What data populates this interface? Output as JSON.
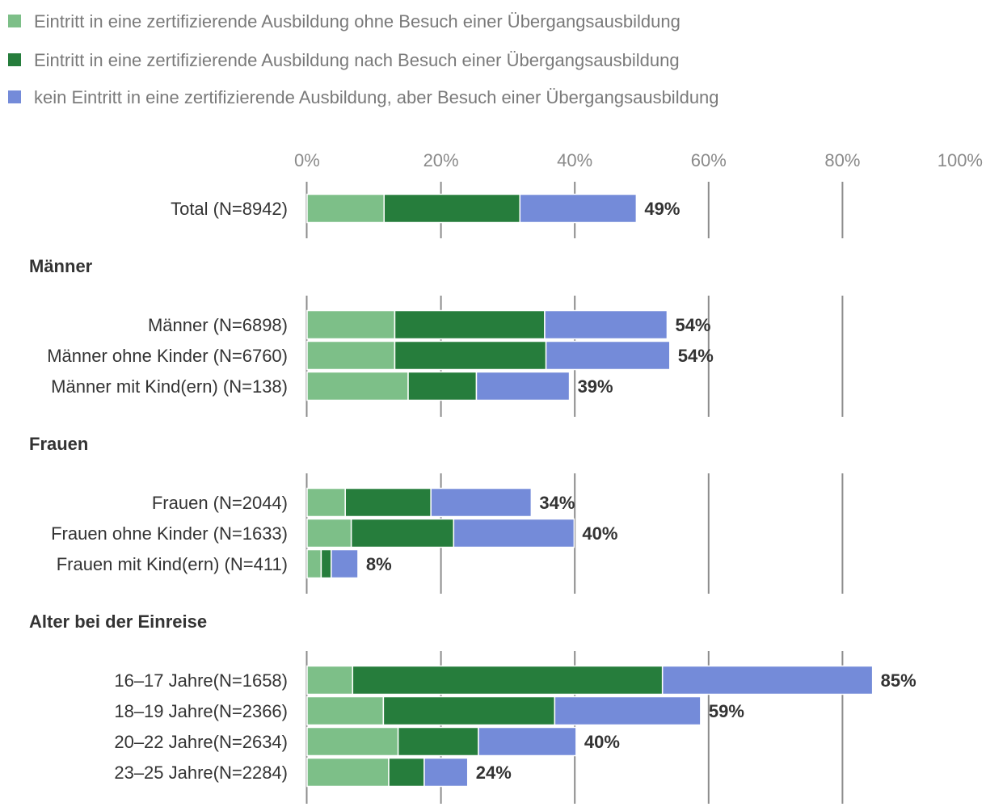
{
  "chart_data": {
    "type": "bar",
    "orientation": "horizontal",
    "stacked": true,
    "xlim": [
      0,
      100
    ],
    "ticks": [
      "0%",
      "20%",
      "40%",
      "60%",
      "80%",
      "100%"
    ],
    "legend_position": "top-left",
    "series": [
      {
        "name": "Eintritt in eine zertifizierende Ausbildung ohne Besuch einer Übergangsausbildung",
        "color": "#7dbf88"
      },
      {
        "name": "Eintritt in eine zertifizierende Ausbildung nach Besuch einer Übergangsausbildung",
        "color": "#267d3c"
      },
      {
        "name": "kein Eintritt in eine zertifizierende Ausbildung, aber Besuch einer Übergangsausbildung",
        "color": "#748bd9"
      }
    ],
    "groups": [
      {
        "title": "",
        "rows": [
          {
            "label": "Total (N=8942)",
            "values": [
              11.5,
              20.3,
              17.4
            ],
            "total_label": "49%"
          }
        ]
      },
      {
        "title": "Männer",
        "rows": [
          {
            "label": "Männer (N=6898)",
            "values": [
              13.1,
              22.4,
              18.3
            ],
            "total_label": "54%"
          },
          {
            "label": "Männer ohne Kinder (N=6760)",
            "values": [
              13.1,
              22.6,
              18.5
            ],
            "total_label": "54%"
          },
          {
            "label": "Männer mit Kind(ern) (N=138)",
            "values": [
              15.1,
              10.2,
              13.9
            ],
            "total_label": "39%"
          }
        ]
      },
      {
        "title": "Frauen",
        "rows": [
          {
            "label": "Frauen (N=2044)",
            "values": [
              5.7,
              12.8,
              15.0
            ],
            "total_label": "34%"
          },
          {
            "label": "Frauen ohne Kinder (N=1633)",
            "values": [
              6.6,
              15.3,
              18.0
            ],
            "total_label": "40%"
          },
          {
            "label": "Frauen mit Kind(ern) (N=411)",
            "values": [
              2.1,
              1.5,
              4.0
            ],
            "total_label": "8%"
          }
        ]
      },
      {
        "title": "Alter bei der Einreise",
        "rows": [
          {
            "label": "16–17 Jahre(N=1658)",
            "values": [
              6.8,
              46.3,
              31.4
            ],
            "total_label": "85%"
          },
          {
            "label": "18–19 Jahre(N=2366)",
            "values": [
              11.4,
              25.6,
              21.8
            ],
            "total_label": "59%"
          },
          {
            "label": "20–22 Jahre(N=2634)",
            "values": [
              13.6,
              12.0,
              14.6
            ],
            "total_label": "40%"
          },
          {
            "label": "23–25 Jahre(N=2284)",
            "values": [
              12.2,
              5.3,
              6.5
            ],
            "total_label": "24%"
          }
        ]
      }
    ]
  }
}
